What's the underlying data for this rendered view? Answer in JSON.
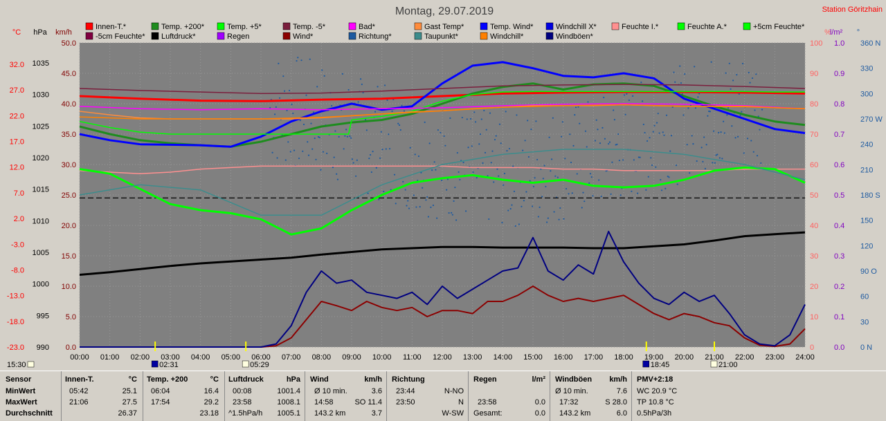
{
  "header": {
    "title": "Montag, 29.07.2019",
    "station": "Station Göritzhain"
  },
  "colors": {
    "Innen-T.": "#ff0000",
    "Temp. +200": "#1e8c1e",
    "Temp. +5": "#00ff00",
    "Temp. -5": "#7a1e3c",
    "Bad": "#ff00ff",
    "Gast Temp": "#ff8c3c",
    "Temp. Wind": "#0000ff",
    "Windchill X": "#0000e0",
    "Feuchte I.": "#ff9090",
    "Feuchte A.": "#00ff00",
    "+5cm Feuchte": "#00ff00",
    "-5cm Feuchte": "#800040",
    "Luftdruck": "#000000",
    "Regen": "#a000ff",
    "Wind": "#8b0000",
    "Richtung": "#1e5aa0",
    "Taupunkt": "#3c8c8c",
    "Windchill": "#ff8000",
    "Windböen": "#000080"
  },
  "chart_data": {
    "type": "line",
    "title": "Montag, 29.07.2019",
    "legend": [
      "Innen-T.*",
      "Temp. +200*",
      "Temp. +5*",
      "Temp. -5*",
      "Bad*",
      "Gast Temp*",
      "Temp. Wind*",
      "Windchill X*",
      "Feuchte I.*",
      "Feuchte A.*",
      "+5cm Feuchte*",
      "-5cm Feuchte*",
      "Luftdruck*",
      "Regen",
      "Wind*",
      "Richtung*",
      "Taupunkt*",
      "Windchill*",
      "Windböen*"
    ],
    "x_ticks": [
      "00:00",
      "01:00",
      "02:00",
      "03:00",
      "04:00",
      "05:00",
      "06:00",
      "07:00",
      "08:00",
      "09:00",
      "10:00",
      "11:00",
      "12:00",
      "13:00",
      "14:00",
      "15:00",
      "16:00",
      "17:00",
      "18:00",
      "19:00",
      "20:00",
      "21:00",
      "22:00",
      "23:00",
      "24:00"
    ],
    "axes": {
      "temp": {
        "unit": "°C",
        "ticks": [
          "32.0",
          "27.0",
          "22.0",
          "17.0",
          "12.0",
          "7.0",
          "2.0",
          "-3.0",
          "-8.0",
          "-13.0",
          "-18.0",
          "-23.0"
        ],
        "range": [
          -23,
          37
        ]
      },
      "hpa": {
        "unit": "hPa",
        "ticks": [
          "1035",
          "1030",
          "1025",
          "1020",
          "1015",
          "1010",
          "1005",
          "1000",
          "995",
          "990"
        ],
        "range": [
          990,
          1038
        ]
      },
      "kmh": {
        "unit": "km/h",
        "ticks": [
          "50.0",
          "45.0",
          "40.0",
          "35.0",
          "30.0",
          "25.0",
          "20.0",
          "15.0",
          "10.0",
          "5.0",
          "0.0"
        ],
        "range": [
          0,
          50
        ]
      },
      "pct": {
        "unit": "%",
        "ticks": [
          "100",
          "90",
          "80",
          "70",
          "60",
          "50",
          "40",
          "30",
          "20",
          "10",
          "0"
        ],
        "range": [
          0,
          100
        ]
      },
      "lm2": {
        "unit": "l/m²",
        "ticks": [
          "1.0",
          "0.9",
          "0.8",
          "0.7",
          "0.6",
          "0.5",
          "0.4",
          "0.3",
          "0.2",
          "0.1",
          "0.0"
        ],
        "range": [
          0,
          1
        ]
      },
      "deg": {
        "unit": "°",
        "ticks": [
          "360 N",
          "330",
          "300",
          "270 W",
          "240",
          "210",
          "180 S",
          "150",
          "120",
          "90 O",
          "60",
          "30",
          "0 N"
        ],
        "range": [
          0,
          360
        ]
      }
    },
    "sun_markers": [
      {
        "time": "02:31",
        "hour": 2.5
      },
      {
        "time": "05:29",
        "hour": 5.5
      },
      {
        "time": "18:45",
        "hour": 18.75
      },
      {
        "time": "21:00",
        "hour": 21.0
      }
    ],
    "start_time": "15:30",
    "series": [
      {
        "name": "Innen-T.*",
        "axis": "temp",
        "x": [
          0,
          2,
          4,
          6,
          8,
          10,
          12,
          14,
          16,
          18,
          20,
          22,
          24
        ],
        "y": [
          26.5,
          26.0,
          25.6,
          25.5,
          25.8,
          26.0,
          26.5,
          27.0,
          27.2,
          27.3,
          27.3,
          27.2,
          27.0
        ]
      },
      {
        "name": "Temp. +200*",
        "axis": "temp",
        "x": [
          0,
          1,
          2,
          3,
          4,
          5,
          6,
          7,
          8,
          9,
          10,
          11,
          12,
          13,
          14,
          15,
          16,
          17,
          18,
          19,
          20,
          21,
          22,
          23,
          24
        ],
        "y": [
          20.5,
          19.0,
          17.8,
          17.2,
          16.8,
          16.5,
          17.5,
          19.0,
          20.5,
          21.3,
          21.8,
          23.0,
          25.0,
          27.0,
          28.3,
          29.0,
          27.8,
          28.8,
          29.0,
          28.5,
          26.5,
          24.5,
          22.8,
          21.5,
          20.8
        ]
      },
      {
        "name": "Temp. Wind*",
        "axis": "temp",
        "x": [
          0,
          1,
          2,
          3,
          4,
          5,
          6,
          7,
          8,
          9,
          10,
          11,
          12,
          13,
          14,
          15,
          16,
          17,
          18,
          19,
          20,
          21,
          22,
          23,
          24
        ],
        "y": [
          19.0,
          17.8,
          17.0,
          16.9,
          16.8,
          16.5,
          18.5,
          21.5,
          23.5,
          25.0,
          23.8,
          24.5,
          29.0,
          32.5,
          33.2,
          32.0,
          30.5,
          30.2,
          31.0,
          30.0,
          26.0,
          24.0,
          22.0,
          20.0,
          19.2
        ]
      },
      {
        "name": "Temp. +5*",
        "axis": "temp",
        "x": [
          0,
          1,
          2,
          3,
          4,
          5,
          6,
          7,
          8,
          8.9,
          9,
          10,
          11,
          12,
          13,
          14,
          15,
          16,
          17,
          18,
          19,
          20,
          21,
          22,
          23,
          24
        ],
        "y": [
          21.5,
          20.3,
          19.4,
          19.0,
          19.0,
          19.0,
          19.0,
          19.0,
          19.0,
          19.0,
          21.8,
          22.5,
          23.5,
          25.5,
          26.8,
          27.3,
          27.4,
          27.4,
          27.4,
          27.4,
          27.4,
          27.4,
          27.4,
          27.4,
          27.3,
          27.3
        ]
      },
      {
        "name": "Bad*",
        "axis": "temp",
        "x": [
          0,
          2,
          4,
          6,
          8,
          10,
          12,
          14,
          16,
          18,
          20,
          22,
          24
        ],
        "y": [
          24.5,
          24.0,
          23.8,
          24.0,
          23.8,
          24.0,
          24.2,
          24.6,
          24.9,
          25.0,
          24.9,
          24.6,
          24.0
        ]
      },
      {
        "name": "Gast Temp*",
        "axis": "temp",
        "x": [
          0,
          1,
          2,
          3,
          4,
          5,
          6,
          7,
          8,
          9,
          10,
          11,
          12,
          13,
          14,
          15,
          16,
          17,
          18,
          19,
          20,
          21,
          22,
          23,
          24
        ],
        "y": [
          23.5,
          22.8,
          22.2,
          22.0,
          22.0,
          22.0,
          22.0,
          22.0,
          22.2,
          22.6,
          23.0,
          23.4,
          23.6,
          24.0,
          24.3,
          24.6,
          24.6,
          24.6,
          24.8,
          24.6,
          24.5,
          24.5,
          24.5,
          24.2,
          24.0
        ]
      },
      {
        "name": "Temp. -5*",
        "axis": "temp",
        "x": [
          0,
          2,
          4,
          6,
          8,
          10,
          12,
          14,
          16,
          18,
          20,
          22,
          24
        ],
        "y": [
          28.0,
          27.6,
          27.3,
          27.0,
          27.1,
          27.5,
          28.0,
          28.5,
          28.7,
          28.8,
          28.7,
          28.4,
          28.0
        ]
      },
      {
        "name": "Feuchte I.*",
        "axis": "pct",
        "x": [
          0,
          1,
          2,
          3,
          4,
          5,
          6,
          7,
          8,
          9,
          10,
          11,
          12,
          13,
          14,
          15,
          16,
          17,
          18,
          19,
          20,
          21,
          22,
          23,
          24
        ],
        "y": [
          58,
          57.5,
          57,
          57.5,
          58.5,
          59,
          59.5,
          59.5,
          59.5,
          59.5,
          59.5,
          59.5,
          59.5,
          59,
          59,
          59,
          58.5,
          58.5,
          58,
          58,
          58,
          58,
          58.5,
          58.5,
          58.5
        ]
      },
      {
        "name": "Feuchte A.*",
        "axis": "pct",
        "x": [
          0,
          1,
          2,
          3,
          4,
          5,
          6,
          7,
          8,
          9,
          10,
          11,
          12,
          13,
          14,
          15,
          16,
          17,
          18,
          19,
          20,
          21,
          22,
          23,
          24
        ],
        "y": [
          58.5,
          57,
          52,
          47,
          45,
          44,
          42,
          37,
          39,
          45,
          50,
          54,
          55.5,
          56.5,
          55,
          54,
          55,
          53,
          52.5,
          53,
          55,
          58,
          59,
          58.5,
          54
        ]
      },
      {
        "name": "Luftdruck*",
        "axis": "hpa",
        "x": [
          0,
          1,
          2,
          3,
          4,
          5,
          6,
          7,
          8,
          9,
          10,
          11,
          12,
          13,
          14,
          15,
          16,
          17,
          18,
          19,
          20,
          21,
          22,
          23,
          24
        ],
        "y": [
          1001.4,
          1001.8,
          1002.3,
          1002.8,
          1003.2,
          1003.5,
          1003.8,
          1004.1,
          1004.6,
          1005.0,
          1005.4,
          1005.6,
          1005.8,
          1005.8,
          1005.7,
          1005.7,
          1005.7,
          1005.6,
          1005.6,
          1005.9,
          1006.2,
          1006.8,
          1007.5,
          1007.8,
          1008.1
        ]
      },
      {
        "name": "Wind*",
        "axis": "kmh",
        "x": [
          0,
          6,
          6.5,
          7,
          7.5,
          8,
          8.5,
          9,
          9.5,
          10,
          10.5,
          11,
          11.5,
          12,
          12.5,
          13,
          13.5,
          14,
          14.5,
          15,
          15.5,
          16,
          16.5,
          17,
          17.5,
          18,
          18.5,
          19,
          19.5,
          20,
          20.5,
          21,
          21.5,
          22,
          22.5,
          23,
          23.5,
          24
        ],
        "y": [
          0,
          0,
          0.2,
          1.5,
          4.5,
          7.5,
          6.8,
          6.0,
          7.5,
          6.5,
          6.0,
          6.5,
          5.0,
          6.0,
          6.0,
          5.5,
          7.5,
          7.5,
          8.5,
          10.0,
          8.5,
          7.5,
          8.0,
          7.5,
          8.0,
          8.5,
          7.0,
          5.5,
          4.5,
          5.5,
          5.0,
          4.0,
          3.5,
          1.5,
          0.3,
          0.1,
          0.5,
          3.0
        ]
      },
      {
        "name": "Windböen*",
        "axis": "kmh",
        "x": [
          0,
          6,
          6.5,
          7,
          7.5,
          8,
          8.5,
          9,
          9.5,
          10,
          10.5,
          11,
          11.5,
          12,
          12.5,
          13,
          13.5,
          14,
          14.5,
          15,
          15.5,
          16,
          16.5,
          17,
          17.5,
          18,
          18.5,
          19,
          19.5,
          20,
          20.5,
          21,
          21.5,
          22,
          22.5,
          23,
          23.5,
          24
        ],
        "y": [
          0,
          0,
          0.5,
          3.5,
          9.0,
          12.5,
          10.5,
          11.0,
          9.0,
          8.5,
          8.0,
          9.0,
          7.0,
          10.0,
          8.0,
          9.5,
          11.0,
          12.5,
          13.0,
          18.0,
          12.5,
          11.0,
          13.5,
          12.0,
          19.0,
          14.0,
          10.5,
          8.0,
          7.0,
          9.0,
          7.5,
          8.5,
          5.5,
          2.0,
          0.5,
          0.2,
          2.0,
          7.0
        ]
      },
      {
        "name": "Taupunkt*",
        "axis": "temp",
        "x": [
          0,
          2,
          4,
          6,
          8,
          10,
          12,
          14,
          16,
          18,
          20,
          22,
          24
        ],
        "y": [
          7,
          9,
          8,
          3,
          3,
          9,
          13,
          15,
          16,
          16,
          15,
          13,
          10
        ]
      },
      {
        "name": "Windchill*",
        "axis": "temp",
        "x": [
          0,
          2,
          4,
          6,
          8,
          10,
          12,
          14,
          16,
          18,
          20,
          22,
          24
        ],
        "y": [
          22.4,
          22.0,
          22.0,
          22.0,
          22.3,
          23.0,
          23.6,
          24.3,
          24.6,
          24.8,
          24.5,
          24.4,
          24.0
        ]
      }
    ]
  },
  "stats": {
    "sensor": {
      "label": "Sensor",
      "rows": [
        "MinWert",
        "MaxWert",
        "Durchschnitt"
      ]
    },
    "innen": {
      "label": "Innen-T.",
      "unit": "°C",
      "r1": [
        "05:42",
        "25.1"
      ],
      "r2": [
        "21:06",
        "27.5"
      ],
      "r3": [
        "",
        "26.37"
      ]
    },
    "temp200": {
      "label": "Temp. +200",
      "unit": "°C",
      "r1": [
        "06:04",
        "16.4"
      ],
      "r2": [
        "17:54",
        "29.2"
      ],
      "r3": [
        "",
        "23.18"
      ]
    },
    "druck": {
      "label": "Luftdruck",
      "unit": "hPa",
      "r1": [
        "00:08",
        "1001.4"
      ],
      "r2": [
        "23:58",
        "1008.1"
      ],
      "r3": [
        "^1.5hPa/h",
        "1005.1"
      ]
    },
    "wind": {
      "label": "Wind",
      "unit": "km/h",
      "r1": [
        "Ø 10 min.",
        "3.6"
      ],
      "r2": [
        "14:58",
        "SO 11.4"
      ],
      "r3": [
        "143.2 km",
        "3.7"
      ]
    },
    "richtung": {
      "label": "Richtung",
      "r1": [
        "23:44",
        "N-NO"
      ],
      "r2": [
        "23:50",
        "N"
      ],
      "r3": [
        "",
        "W-SW"
      ]
    },
    "regen": {
      "label": "Regen",
      "unit": "l/m²",
      "r1": [
        "",
        ""
      ],
      "r2": [
        "23:58",
        "0.0"
      ],
      "r3": [
        "Gesamt:",
        "0.0"
      ]
    },
    "boeen": {
      "label": "Windböen",
      "unit": "km/h",
      "r1": [
        "Ø 10 min.",
        "7.6"
      ],
      "r2": [
        "17:32",
        "S 28.0"
      ],
      "r3": [
        "143.2 km",
        "6.0"
      ]
    },
    "pmv": {
      "label": "PMV+2:18",
      "r1": "WC 20.9 °C",
      "r2": "TP 10.8 °C",
      "r3": "0.5hPa/3h"
    }
  }
}
